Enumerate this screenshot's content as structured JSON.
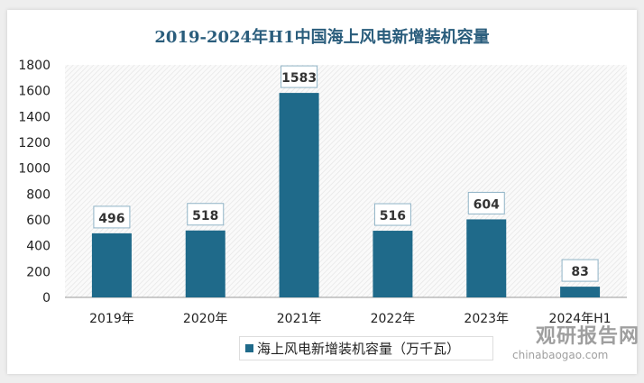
{
  "chart_data": {
    "type": "bar",
    "title": "2019-2024年H1中国海上风电新增装机容量",
    "categories": [
      "2019年",
      "2020年",
      "2021年",
      "2022年",
      "2023年",
      "2024年H1"
    ],
    "series": [
      {
        "name": "海上风电新增装机容量（万千瓦）",
        "values": [
          496,
          518,
          1583,
          516,
          604,
          83
        ]
      }
    ],
    "ylim": [
      0,
      1800
    ],
    "yticks": [
      0,
      200,
      400,
      600,
      800,
      1000,
      1200,
      1400,
      1600,
      1800
    ],
    "grid": false,
    "legend": "bottom",
    "bar_color": "#1f6a8a"
  },
  "watermark": {
    "cn": "观研报告网",
    "en": "chinabaogao.com"
  }
}
